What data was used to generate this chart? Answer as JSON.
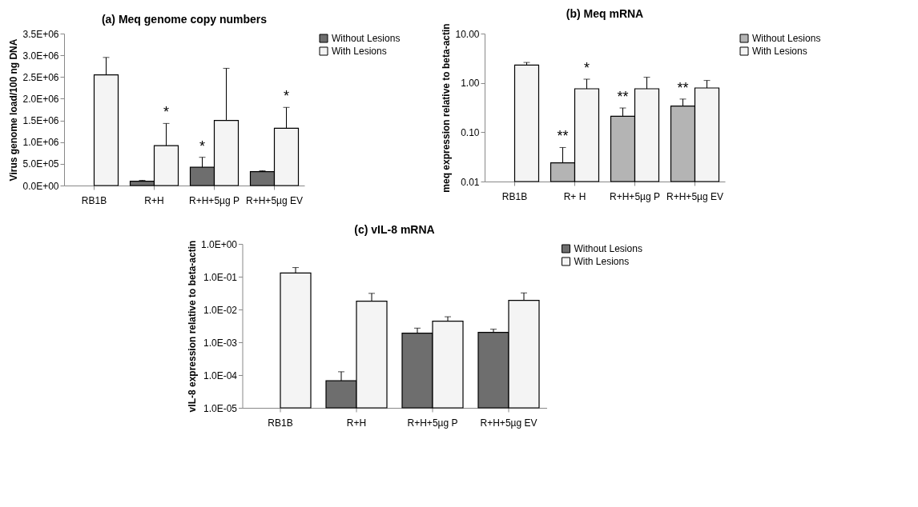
{
  "chart_data": [
    {
      "type": "bar",
      "title": "(a) Meq genome copy numbers",
      "ylabel": "Virus genome load/100 ng DNA",
      "categories": [
        "RB1B",
        "R+H",
        "R+H+5µg P",
        "R+H+5µg EV"
      ],
      "series": [
        {
          "name": "Without Lesions",
          "color": "#6e6e6e",
          "values": [
            null,
            100000,
            420000,
            320000
          ],
          "errors": [
            null,
            [
              100000,
              120000
            ],
            [
              420000,
              650000
            ],
            [
              320000,
              340000
            ]
          ]
        },
        {
          "name": "With Lesions",
          "color": "#f4f4f4",
          "values": [
            2550000,
            920000,
            1500000,
            1320000
          ],
          "errors": [
            [
              2550000,
              2950000
            ],
            [
              920000,
              1430000
            ],
            [
              1500000,
              2700000
            ],
            [
              1320000,
              1800000
            ]
          ]
        }
      ],
      "ylim": [
        0,
        3500000
      ],
      "yticks": [
        {
          "value": 0,
          "label": "0.0E+00"
        },
        {
          "value": 500000,
          "label": "5.0E+05"
        },
        {
          "value": 1000000,
          "label": "1.0E+06"
        },
        {
          "value": 1500000,
          "label": "1.5E+06"
        },
        {
          "value": 2000000,
          "label": "2.0E+06"
        },
        {
          "value": 2500000,
          "label": "2.5E+06"
        },
        {
          "value": 3000000,
          "label": "3.0E+06"
        },
        {
          "value": 3500000,
          "label": "3.5E+06"
        }
      ],
      "annotations": [
        {
          "text": "*",
          "x": "R+H",
          "y": 920000
        },
        {
          "text": "*",
          "x": "R+H+5µg P",
          "y": 420000
        },
        {
          "text": "*",
          "x": "R+H+5µg EV",
          "y": 1320000
        }
      ],
      "legend": "right"
    },
    {
      "type": "bar",
      "title": "(b) Meq mRNA",
      "ylabel": "meq expression relative to beta-actin",
      "categories": [
        "RB1B",
        "R+ H",
        "R+H+5µg P",
        "R+H+5µg EV"
      ],
      "log": true,
      "series": [
        {
          "name": "Without Lesions",
          "color": "#b4b4b4",
          "values": [
            null,
            0.024,
            0.21,
            0.34
          ],
          "errors": [
            null,
            [
              0.024,
              0.049
            ],
            [
              0.21,
              0.31
            ],
            [
              0.34,
              0.47
            ]
          ]
        },
        {
          "name": "With Lesions",
          "color": "#f4f4f4",
          "values": [
            2.3,
            0.76,
            0.76,
            0.79
          ],
          "errors": [
            [
              2.3,
              2.6
            ],
            [
              0.76,
              1.19
            ],
            [
              0.76,
              1.3
            ],
            [
              0.79,
              1.12
            ]
          ]
        }
      ],
      "ylim": [
        0.01,
        10
      ],
      "yticks": [
        {
          "value": 0.01,
          "label": "0.01"
        },
        {
          "value": 0.1,
          "label": "0.10"
        },
        {
          "value": 1,
          "label": "1.00"
        },
        {
          "value": 10,
          "label": "10.00"
        }
      ],
      "annotations": [
        {
          "text": "**",
          "x": "R+ H",
          "y": 0.024
        },
        {
          "text": "*",
          "x": "R+ H",
          "y": 0.76
        },
        {
          "text": "**",
          "x": "R+H+5µg P",
          "y": 0.21
        },
        {
          "text": "**",
          "x": "R+H+5µg EV",
          "y": 0.34
        }
      ],
      "legend": "top right"
    },
    {
      "type": "bar",
      "title": "(c) vIL-8 mRNA",
      "ylabel": "vIL-8 expression relative to beta-actin",
      "categories": [
        "RB1B",
        "R+H",
        "R+H+5µg P",
        "R+H+5µg EV"
      ],
      "log": true,
      "series": [
        {
          "name": "Without Lesions",
          "color": "#6e6e6e",
          "values": [
            null,
            6.7e-05,
            0.0019,
            0.002
          ],
          "errors": [
            null,
            [
              6.7e-05,
              0.000126
            ],
            [
              0.0019,
              0.0027
            ],
            [
              0.002,
              0.0025
            ]
          ]
        },
        {
          "name": "With Lesions",
          "color": "#f4f4f4",
          "values": [
            0.13,
            0.018,
            0.0044,
            0.019
          ],
          "errors": [
            [
              0.13,
              0.19
            ],
            [
              0.018,
              0.031
            ],
            [
              0.0044,
              0.006
            ],
            [
              0.019,
              0.032
            ]
          ]
        }
      ],
      "ylim": [
        1e-05,
        1
      ],
      "yticks": [
        {
          "value": 1e-05,
          "label": "1.0E-05"
        },
        {
          "value": 0.0001,
          "label": "1.0E-04"
        },
        {
          "value": 0.001,
          "label": "1.0E-03"
        },
        {
          "value": 0.01,
          "label": "1.0E-02"
        },
        {
          "value": 0.1,
          "label": "1.0E-01"
        },
        {
          "value": 1,
          "label": "1.0E+00"
        }
      ],
      "legend": "top right"
    }
  ]
}
